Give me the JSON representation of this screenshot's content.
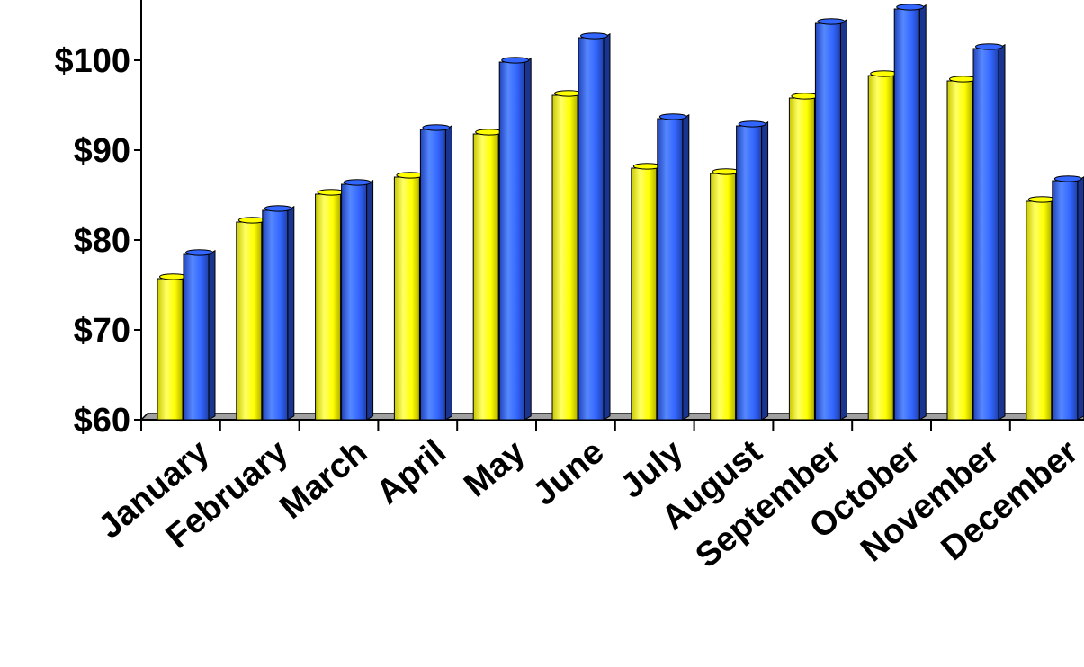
{
  "chart_data": {
    "type": "bar",
    "title": "",
    "xlabel": "",
    "ylabel": "",
    "categories": [
      "January",
      "February",
      "March",
      "April",
      "May",
      "June",
      "July",
      "August",
      "September",
      "October",
      "November",
      "December"
    ],
    "series": [
      {
        "color": "#ffff00",
        "values": [
          75.7,
          82.0,
          85.1,
          87.0,
          91.8,
          96.1,
          88.0,
          87.4,
          95.8,
          98.3,
          97.7,
          84.3
        ]
      },
      {
        "color": "#3366ff",
        "values": [
          78.4,
          83.3,
          86.2,
          92.3,
          99.8,
          102.5,
          93.5,
          92.7,
          104.1,
          105.7,
          101.3,
          86.6
        ]
      }
    ],
    "ylim": [
      60,
      106
    ],
    "yticks": [
      60,
      70,
      80,
      90,
      100
    ],
    "ytick_labels": [
      "$60",
      "$70",
      "$80",
      "$90",
      "$100"
    ],
    "grid": false,
    "legend": "none",
    "style": "3d-cylinder-bars"
  }
}
